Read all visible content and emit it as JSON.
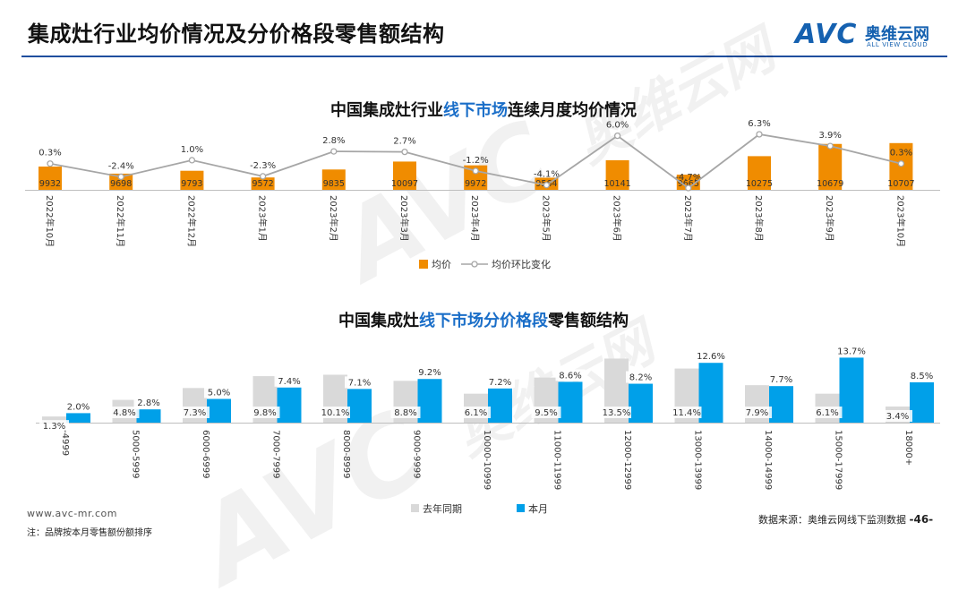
{
  "header": {
    "title": "集成灶行业均价情况及分价格段零售额结构",
    "logo_mark": "AVC",
    "logo_cn": "奥维云网",
    "logo_en": "ALL VIEW CLOUD"
  },
  "watermark": {
    "mark": "AVC",
    "cn": "奥维云网",
    "en": "ALL VIEW CLOUD"
  },
  "chart1": {
    "title_prefix": "中国集成灶行业",
    "title_highlight": "线下市场",
    "title_suffix": "连续月度均价情况"
  },
  "chart2": {
    "title_prefix": "中国集成灶",
    "title_highlight": "线下市场分价格段",
    "title_suffix": "零售额结构"
  },
  "footer": {
    "website": "www.avc-mr.com",
    "note": "注：品牌按本月零售额份额排序",
    "source": "数据来源：奥维云网线下监测数据",
    "page": "-46-"
  },
  "colors": {
    "accent": "#1a6ec8",
    "bar_orange": "#f08c00",
    "line_gray": "#a6a6a6",
    "bar_gray": "#d9d9d9",
    "bar_blue": "#00a0e9",
    "rule": "#1f4e9e"
  },
  "chart_data": [
    {
      "type": "bar",
      "title": "中国集成灶行业线下市场连续月度均价情况",
      "categories": [
        "2022年10月",
        "2022年11月",
        "2022年12月",
        "2023年1月",
        "2023年2月",
        "2023年3月",
        "2023年4月",
        "2023年5月",
        "2023年6月",
        "2023年7月",
        "2023年8月",
        "2023年9月",
        "2023年10月"
      ],
      "series": [
        {
          "name": "均价",
          "kind": "bar",
          "values": [
            9932,
            9698,
            9793,
            9572,
            9835,
            10097,
            9972,
            9564,
            10141,
            9665,
            10275,
            10679,
            10707
          ],
          "labels": [
            "9932",
            "9698",
            "9793",
            "9572",
            "9835",
            "10097",
            "9972",
            "9564",
            "10141",
            "9665",
            "10275",
            "10679",
            "10707"
          ]
        },
        {
          "name": "均价环比变化",
          "kind": "line",
          "values": [
            0.3,
            -2.4,
            1.0,
            -2.3,
            2.8,
            2.7,
            -1.2,
            -4.1,
            6.0,
            -4.7,
            6.3,
            3.9,
            0.3
          ],
          "labels": [
            "0.3%",
            "-2.4%",
            "1.0%",
            "-2.3%",
            "2.8%",
            "2.7%",
            "-1.2%",
            "-4.1%",
            "6.0%",
            "-4.7%",
            "6.3%",
            "3.9%",
            "0.3%"
          ]
        }
      ],
      "legend": [
        "均价",
        "均价环比变化"
      ],
      "legend_position": "bottom"
    },
    {
      "type": "bar",
      "title": "中国集成灶线下市场分价格段零售额结构",
      "categories": [
        "-4999",
        "5000-5999",
        "6000-6999",
        "7000-7999",
        "8000-8999",
        "9000-9999",
        "10000-10999",
        "11000-11999",
        "12000-12999",
        "13000-13999",
        "14000-14999",
        "15000-17999",
        "18000+"
      ],
      "series": [
        {
          "name": "去年同期",
          "values": [
            1.3,
            4.8,
            7.3,
            9.8,
            10.1,
            8.8,
            6.1,
            9.5,
            13.5,
            11.4,
            7.9,
            6.1,
            3.4
          ],
          "labels": [
            "1.3%",
            "4.8%",
            "7.3%",
            "9.8%",
            "10.1%",
            "8.8%",
            "6.1%",
            "9.5%",
            "13.5%",
            "11.4%",
            "7.9%",
            "6.1%",
            "3.4%"
          ]
        },
        {
          "name": "本月",
          "values": [
            2.0,
            2.8,
            5.0,
            7.4,
            7.1,
            9.2,
            7.2,
            8.6,
            8.2,
            12.6,
            7.7,
            13.7,
            8.5
          ],
          "labels": [
            "2.0%",
            "2.8%",
            "5.0%",
            "7.4%",
            "7.1%",
            "9.2%",
            "7.2%",
            "8.6%",
            "8.2%",
            "12.6%",
            "7.7%",
            "13.7%",
            "8.5%"
          ]
        }
      ],
      "legend": [
        "去年同期",
        "本月"
      ],
      "legend_position": "bottom"
    }
  ]
}
